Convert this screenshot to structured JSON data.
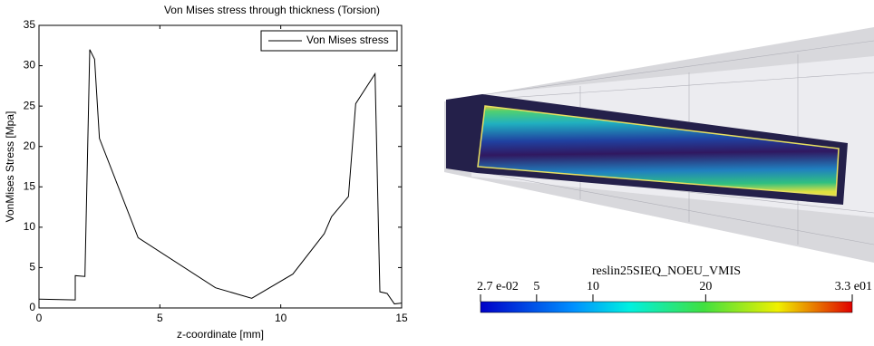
{
  "chart_data": {
    "type": "line",
    "title": "Von Mises stress through thickness (Torsion)",
    "x_label": "z-coordinate [mm]",
    "y_label": "VonMises Stress [Mpa]",
    "x": [
      0,
      1.5,
      1.5,
      1.9,
      2.1,
      2.3,
      2.5,
      4.1,
      7.3,
      8.8,
      10.5,
      11.8,
      12.1,
      12.8,
      13.1,
      13.9,
      14.1,
      14.4,
      14.7,
      15
    ],
    "series": [
      {
        "name": "Von Mises stress",
        "color": "#000000",
        "values": [
          1.1,
          1.0,
          4.0,
          3.9,
          32.0,
          30.8,
          21.0,
          8.7,
          2.5,
          1.2,
          4.2,
          9.2,
          11.3,
          13.8,
          25.3,
          29.0,
          2.0,
          1.8,
          0.5,
          0.6
        ]
      }
    ],
    "xlim": [
      0,
      15
    ],
    "ylim": [
      0,
      35
    ],
    "xticks": [
      0,
      5,
      10,
      15
    ],
    "yticks": [
      0,
      5,
      10,
      15,
      20,
      25,
      30,
      35
    ],
    "legend": "upper right"
  },
  "colorbar": {
    "title": "reslin25SIEQ_NOEU_VMIS",
    "lim": [
      0.027,
      33
    ],
    "ticks": [
      {
        "value": 0.027,
        "label": "2.7 e-02"
      },
      5,
      10,
      20,
      {
        "value": 33,
        "label": "3.3 e01"
      }
    ]
  }
}
